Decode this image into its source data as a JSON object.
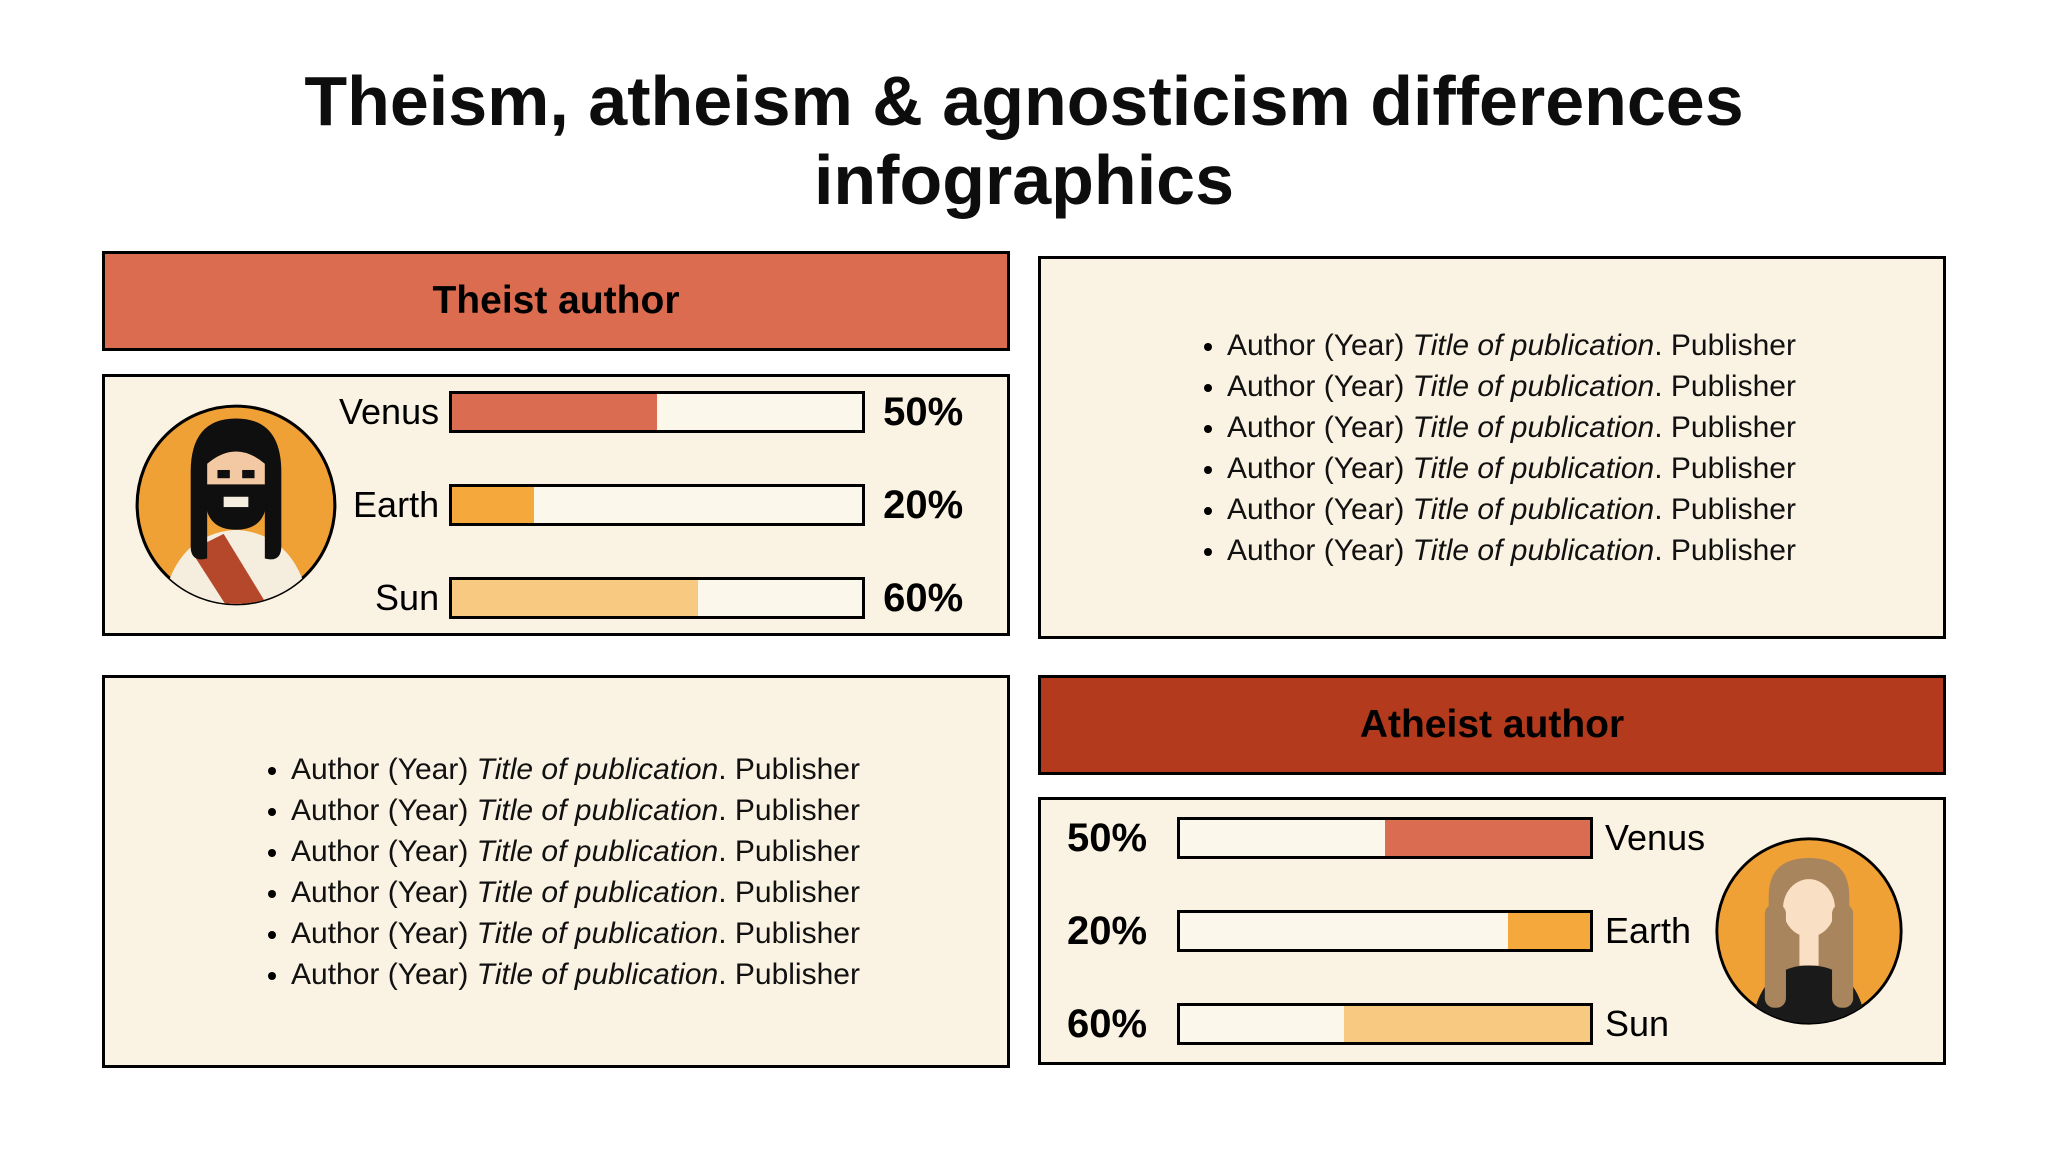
{
  "title": "Theism, atheism & agnosticism differences infographics",
  "colors": {
    "theist_header_bg": "#DC6C50",
    "atheist_header_bg": "#B43A1E",
    "panel_bg": "#FAF2E2",
    "bar_track_bg": "#FCF7EB",
    "venus_bar": "#D96C51",
    "earth_bar": "#F5A83C",
    "sun_bar": "#F8C981",
    "avatar_circle_bg": "#F0A136",
    "sash_red": "#B5472A"
  },
  "theist": {
    "header": "Theist author",
    "bars": [
      {
        "label": "Venus",
        "value": 50,
        "display": "50%",
        "color": "#D96C51"
      },
      {
        "label": "Earth",
        "value": 20,
        "display": "20%",
        "color": "#F5A83C"
      },
      {
        "label": "Sun",
        "value": 60,
        "display": "60%",
        "color": "#F8C981"
      }
    ]
  },
  "atheist": {
    "header": "Atheist author",
    "bars": [
      {
        "label": "Venus",
        "value": 50,
        "display": "50%",
        "color": "#D96C51"
      },
      {
        "label": "Earth",
        "value": 20,
        "display": "20%",
        "color": "#F5A83C"
      },
      {
        "label": "Sun",
        "value": 60,
        "display": "60%",
        "color": "#F8C981"
      }
    ]
  },
  "references": {
    "top_right": [
      {
        "prefix": "Author (Year) ",
        "italic": "Title of publication",
        "suffix": ". Publisher"
      },
      {
        "prefix": "Author (Year) ",
        "italic": "Title of publication",
        "suffix": ". Publisher"
      },
      {
        "prefix": "Author (Year) ",
        "italic": "Title of publication",
        "suffix": ". Publisher"
      },
      {
        "prefix": "Author (Year) ",
        "italic": "Title of publication",
        "suffix": ". Publisher"
      },
      {
        "prefix": "Author (Year) ",
        "italic": "Title of publication",
        "suffix": ". Publisher"
      },
      {
        "prefix": "Author (Year) ",
        "italic": "Title of publication",
        "suffix": ". Publisher"
      }
    ],
    "bottom_left": [
      {
        "prefix": "Author (Year) ",
        "italic": "Title of publication",
        "suffix": ". Publisher"
      },
      {
        "prefix": "Author (Year) ",
        "italic": "Title of publication",
        "suffix": ". Publisher"
      },
      {
        "prefix": "Author (Year) ",
        "italic": "Title of publication",
        "suffix": ". Publisher"
      },
      {
        "prefix": "Author (Year) ",
        "italic": "Title of publication",
        "suffix": ". Publisher"
      },
      {
        "prefix": "Author (Year) ",
        "italic": "Title of publication",
        "suffix": ". Publisher"
      },
      {
        "prefix": "Author (Year) ",
        "italic": "Title of publication",
        "suffix": ". Publisher"
      }
    ]
  },
  "chart_data": [
    {
      "type": "bar",
      "title": "Theist author",
      "orientation": "horizontal",
      "categories": [
        "Venus",
        "Earth",
        "Sun"
      ],
      "values": [
        50,
        20,
        60
      ],
      "value_labels": [
        "50%",
        "20%",
        "60%"
      ],
      "unit": "%",
      "xlim": [
        0,
        100
      ],
      "bar_colors": [
        "#D96C51",
        "#F5A83C",
        "#F8C981"
      ],
      "grid": false,
      "legend": false,
      "bar_alignment": "left"
    },
    {
      "type": "bar",
      "title": "Atheist author",
      "orientation": "horizontal",
      "categories": [
        "Venus",
        "Earth",
        "Sun"
      ],
      "values": [
        50,
        20,
        60
      ],
      "value_labels": [
        "50%",
        "20%",
        "60%"
      ],
      "unit": "%",
      "xlim": [
        0,
        100
      ],
      "bar_colors": [
        "#D96C51",
        "#F5A83C",
        "#F8C981"
      ],
      "grid": false,
      "legend": false,
      "bar_alignment": "right"
    }
  ]
}
